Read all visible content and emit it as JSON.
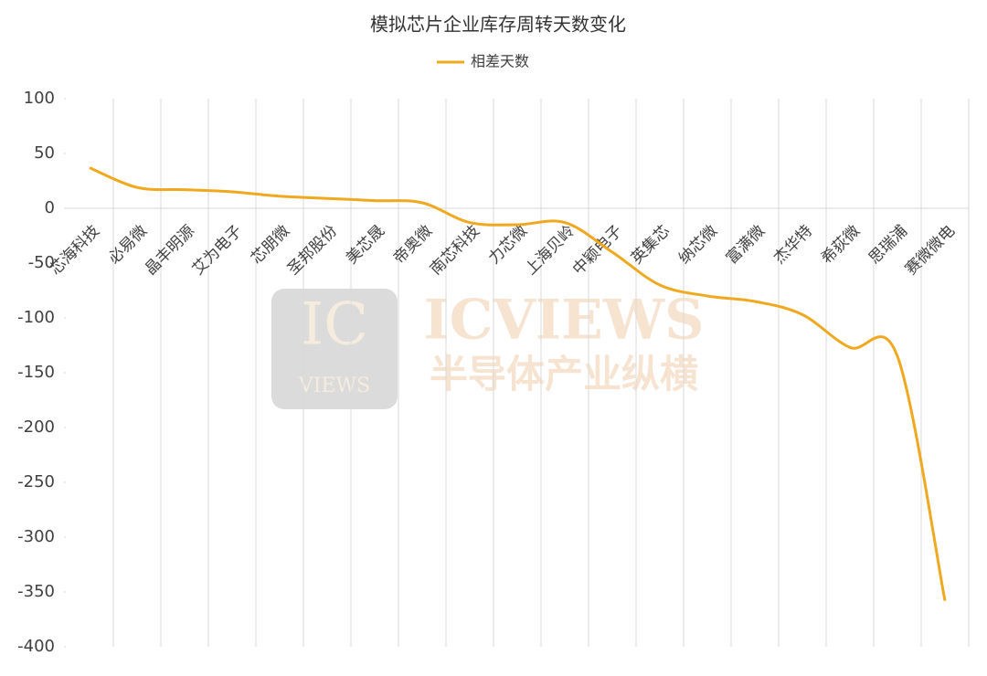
{
  "chart_data": {
    "type": "line",
    "title": "模拟芯片企业库存周转天数变化",
    "categories": [
      "芯海科技",
      "必易微",
      "晶丰明源",
      "艾为电子",
      "芯朋微",
      "圣邦股份",
      "美芯晟",
      "帝奥微",
      "南芯科技",
      "力芯微",
      "上海贝岭",
      "中颖电子",
      "英集芯",
      "纳芯微",
      "富满微",
      "杰华特",
      "希荻微",
      "思瑞浦",
      "赛微微电"
    ],
    "series": [
      {
        "name": "相差天数",
        "color": "#f0a81e",
        "values": [
          37,
          19,
          17,
          15,
          11,
          9,
          7,
          5,
          -13,
          -15,
          -13,
          -40,
          -70,
          -80,
          -85,
          -97,
          -127,
          -135,
          -358
        ]
      }
    ],
    "ylim": [
      -400,
      100
    ],
    "yticks": [
      100,
      50,
      0,
      -50,
      -100,
      -150,
      -200,
      -250,
      -300,
      -350,
      -400
    ],
    "smooth": true,
    "legend": "top"
  },
  "watermark": {
    "logo_top": "IC",
    "logo_bottom": "VIEWS",
    "brand": "ICVIEWS",
    "tagline": "半导体产业纵横"
  }
}
